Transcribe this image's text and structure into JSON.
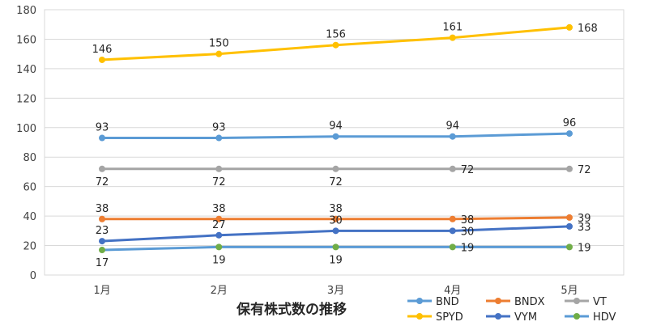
{
  "chart_data": {
    "type": "line",
    "xlabel": "保有株式数の推移",
    "ylabel": "",
    "ylim": [
      0,
      180
    ],
    "ytick_step": 20,
    "grid": true,
    "legend_position": "bottom-right",
    "categories": [
      "1月",
      "2月",
      "3月",
      "4月",
      "5月"
    ],
    "series": [
      {
        "name": "SPYD",
        "color": "#FFC000",
        "values": [
          146,
          150,
          156,
          161,
          168
        ],
        "label_pos": [
          "above",
          "above",
          "above",
          "above",
          "right"
        ]
      },
      {
        "name": "BND",
        "color": "#5B9BD5",
        "values": [
          93,
          93,
          94,
          94,
          96
        ],
        "label_pos": [
          "above",
          "above",
          "above",
          "above",
          "above"
        ]
      },
      {
        "name": "VT",
        "color": "#A5A5A5",
        "values": [
          72,
          72,
          72,
          72,
          72
        ],
        "label_pos": [
          "below",
          "below",
          "below",
          "right",
          "right"
        ]
      },
      {
        "name": "BNDX",
        "color": "#ED7D31",
        "values": [
          38,
          38,
          38,
          38,
          39
        ],
        "label_pos": [
          "above",
          "above",
          "above",
          "right",
          "right"
        ]
      },
      {
        "name": "VYM",
        "color": "#4472C4",
        "values": [
          23,
          27,
          30,
          30,
          33
        ],
        "label_pos": [
          "above",
          "above",
          "above",
          "right",
          "right"
        ]
      },
      {
        "name": "HDV",
        "color": "#70AD47",
        "line_color": "#5B9BD5",
        "values": [
          17,
          19,
          19,
          19,
          19
        ],
        "label_pos": [
          "below",
          "below",
          "below",
          "right",
          "right"
        ]
      }
    ],
    "legend_order": [
      "BND",
      "BNDX",
      "VT",
      "SPYD",
      "VYM",
      "HDV"
    ]
  }
}
